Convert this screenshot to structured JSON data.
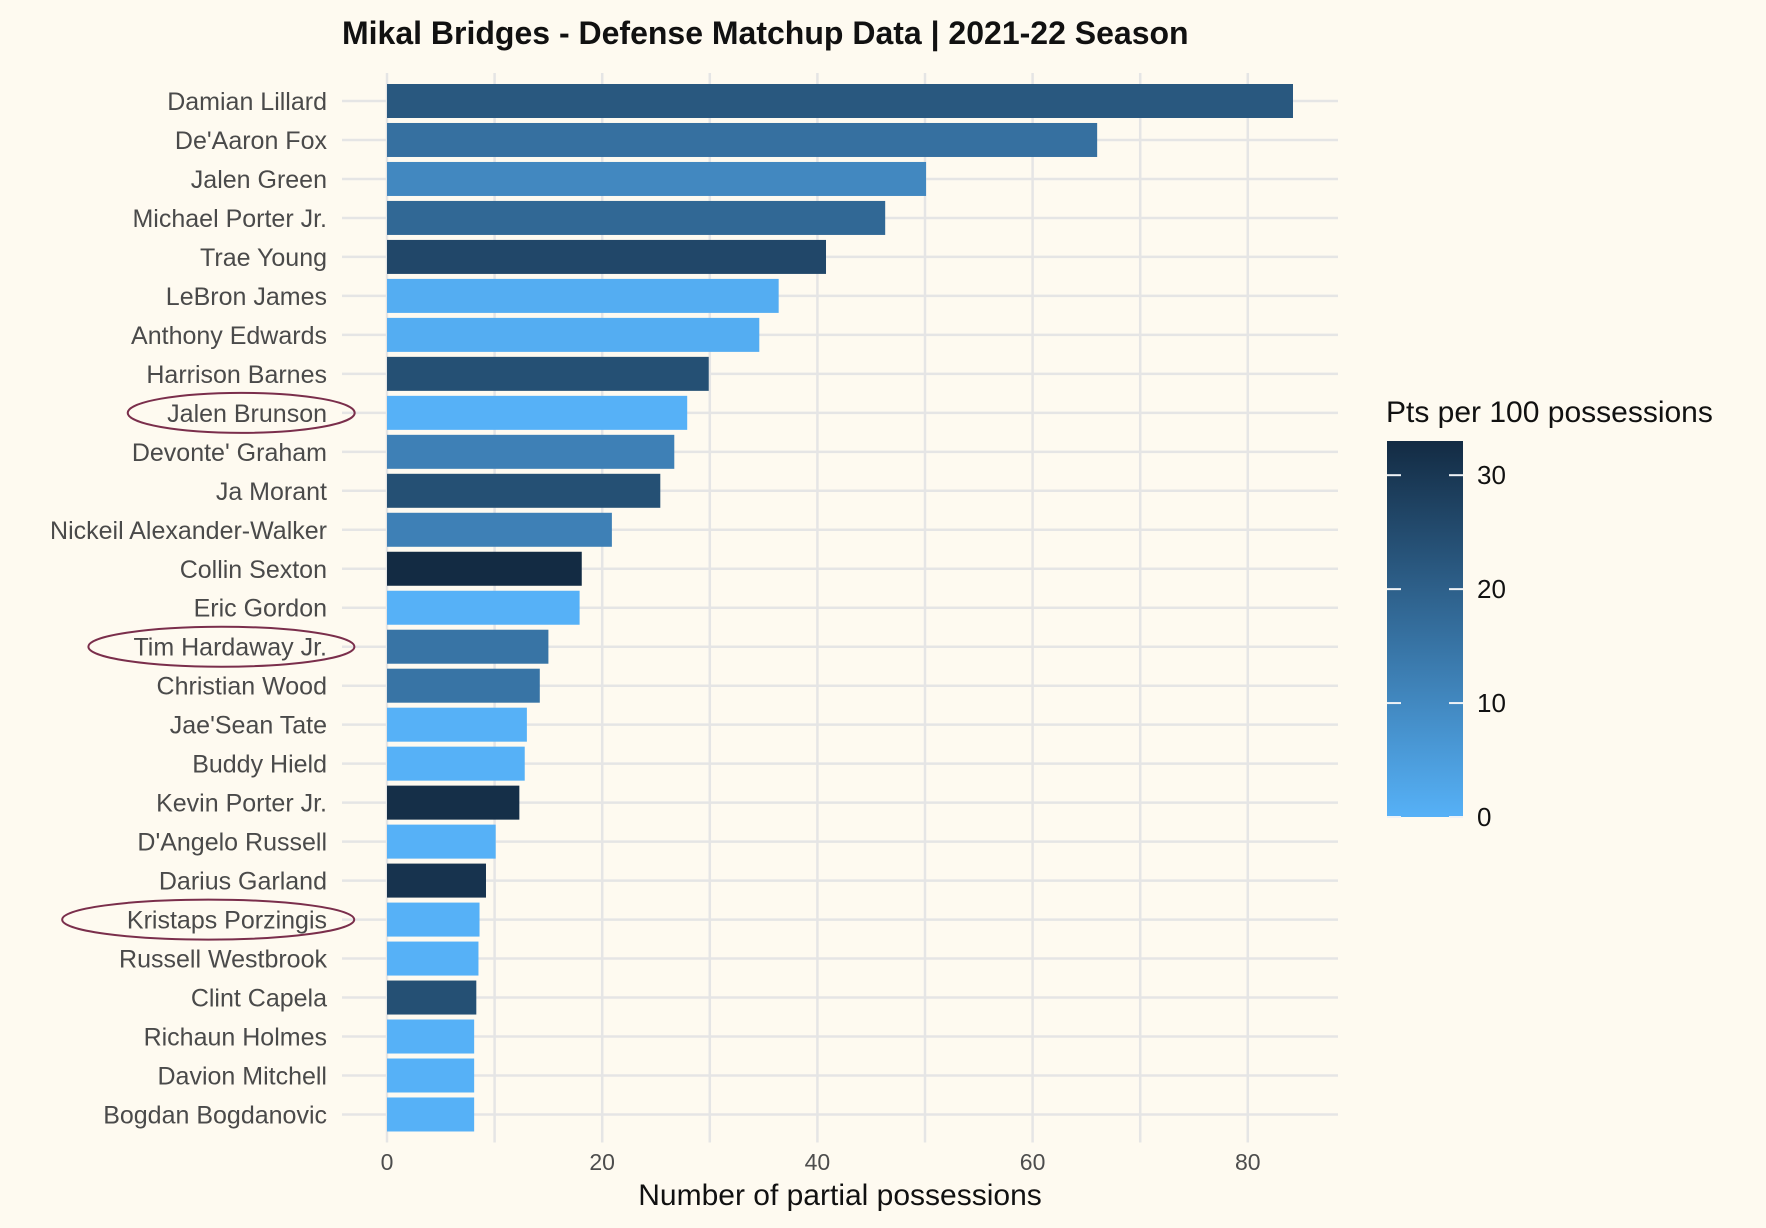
{
  "chart_data": {
    "type": "bar",
    "orientation": "horizontal",
    "title": "Mikal Bridges - Defense Matchup Data | 2021-22 Season",
    "xlabel": "Number of partial possessions",
    "ylabel": "",
    "xlim": [
      0,
      88
    ],
    "x_ticks": [
      0,
      20,
      40,
      60,
      80
    ],
    "grid": true,
    "categories": [
      "Damian Lillard",
      "De'Aaron Fox",
      "Jalen Green",
      "Michael Porter Jr.",
      "Trae Young",
      "LeBron James",
      "Anthony Edwards",
      "Harrison Barnes",
      "Jalen Brunson",
      "Devonte' Graham",
      "Ja Morant",
      "Nickeil Alexander-Walker",
      "Collin Sexton",
      "Eric Gordon",
      "Tim Hardaway Jr.",
      "Christian Wood",
      "Jae'Sean Tate",
      "Buddy Hield",
      "Kevin Porter Jr.",
      "D'Angelo Russell",
      "Darius Garland",
      "Kristaps Porzingis",
      "Russell Westbrook",
      "Clint Capela",
      "Richaun Holmes",
      "Davion Mitchell",
      "Bogdan Bogdanovic"
    ],
    "values": [
      84.2,
      66.0,
      50.1,
      46.3,
      40.8,
      36.4,
      34.6,
      29.9,
      27.9,
      26.7,
      25.4,
      20.9,
      18.1,
      17.9,
      15.0,
      14.2,
      13.0,
      12.8,
      12.3,
      10.1,
      9.2,
      8.6,
      8.5,
      8.3,
      8.1,
      8.1,
      8.1
    ],
    "color_values": [
      22,
      16,
      10,
      18,
      26,
      1,
      1,
      24,
      0,
      12,
      24,
      12,
      33,
      0,
      15,
      15,
      0,
      0,
      32,
      0,
      31,
      0,
      0,
      24,
      0,
      0,
      0
    ],
    "highlighted": [
      "Jalen Brunson",
      "Tim Hardaway Jr.",
      "Kristaps Porzingis"
    ],
    "legend": {
      "title": "Pts per 100 possessions",
      "ticks": [
        0,
        10,
        20,
        30
      ],
      "range": [
        0,
        33
      ],
      "low_color": "#56b1f7",
      "high_color": "#132b43",
      "placement": "right"
    }
  },
  "colors": {
    "background": "#fefaf0",
    "grid": "#e5e5e5",
    "highlight_ring": "#7a2e4b"
  }
}
